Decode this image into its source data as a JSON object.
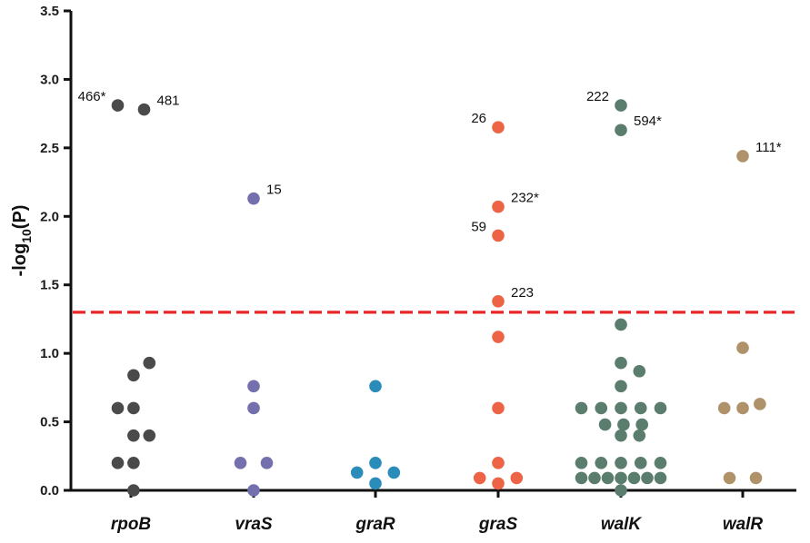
{
  "chart_data": {
    "type": "scatter",
    "ylabel": {
      "prefix": "-log",
      "subscript": "10",
      "suffix": "(P)"
    },
    "xlabel": "",
    "ylim": [
      0,
      3.5
    ],
    "yticks": [
      "0.0",
      "0.5",
      "1.0",
      "1.5",
      "2.0",
      "2.5",
      "3.0",
      "3.5"
    ],
    "threshold": {
      "value": 1.3,
      "color": "#e8262a",
      "style": "dashed"
    },
    "categories": [
      "rpoB",
      "vraS",
      "graR",
      "graS",
      "walK",
      "walR"
    ],
    "series": [
      {
        "name": "rpoB",
        "color": "#4a4a4a",
        "points": [
          {
            "y": 2.81,
            "dx": -1
          },
          {
            "y": 2.78,
            "dx": 1
          },
          {
            "y": 0.93,
            "dx": 1.4
          },
          {
            "y": 0.84,
            "dx": 0.2
          },
          {
            "y": 0.6,
            "dx": -1
          },
          {
            "y": 0.6,
            "dx": 0.2
          },
          {
            "y": 0.4,
            "dx": 0.2
          },
          {
            "y": 0.4,
            "dx": 1.4
          },
          {
            "y": 0.2,
            "dx": -1
          },
          {
            "y": 0.2,
            "dx": 0.2
          },
          {
            "y": 0.0,
            "dx": 0.2
          }
        ],
        "labels": [
          {
            "point": 0,
            "text": "466*",
            "side": "left"
          },
          {
            "point": 1,
            "text": "481",
            "side": "right"
          }
        ]
      },
      {
        "name": "vraS",
        "color": "#7370ad",
        "points": [
          {
            "y": 2.13,
            "dx": 0
          },
          {
            "y": 0.76,
            "dx": 0
          },
          {
            "y": 0.6,
            "dx": 0
          },
          {
            "y": 0.2,
            "dx": -1
          },
          {
            "y": 0.2,
            "dx": 1
          },
          {
            "y": 0.0,
            "dx": 0
          }
        ],
        "labels": [
          {
            "point": 0,
            "text": "15",
            "side": "right"
          }
        ]
      },
      {
        "name": "graR",
        "color": "#2a8cb8",
        "points": [
          {
            "y": 0.76,
            "dx": 0
          },
          {
            "y": 0.2,
            "dx": 0
          },
          {
            "y": 0.13,
            "dx": -1.4
          },
          {
            "y": 0.13,
            "dx": 1.4
          },
          {
            "y": 0.05,
            "dx": 0
          }
        ],
        "labels": []
      },
      {
        "name": "graS",
        "color": "#ec6345",
        "points": [
          {
            "y": 2.65,
            "dx": 0
          },
          {
            "y": 2.07,
            "dx": 0
          },
          {
            "y": 1.86,
            "dx": 0
          },
          {
            "y": 1.38,
            "dx": 0
          },
          {
            "y": 1.12,
            "dx": 0
          },
          {
            "y": 0.6,
            "dx": 0
          },
          {
            "y": 0.2,
            "dx": 0
          },
          {
            "y": 0.09,
            "dx": -1.4
          },
          {
            "y": 0.09,
            "dx": 1.4
          },
          {
            "y": 0.05,
            "dx": 0
          }
        ],
        "labels": [
          {
            "point": 0,
            "text": "26",
            "side": "left"
          },
          {
            "point": 1,
            "text": "232*",
            "side": "right"
          },
          {
            "point": 2,
            "text": "59",
            "side": "left"
          },
          {
            "point": 3,
            "text": "223",
            "side": "right"
          }
        ]
      },
      {
        "name": "walK",
        "color": "#5a7d6e",
        "points": [
          {
            "y": 2.81,
            "dx": 0
          },
          {
            "y": 2.63,
            "dx": 0
          },
          {
            "y": 1.21,
            "dx": 0
          },
          {
            "y": 0.93,
            "dx": 0
          },
          {
            "y": 0.87,
            "dx": 1.4
          },
          {
            "y": 0.76,
            "dx": 0
          },
          {
            "y": 0.6,
            "dx": -3
          },
          {
            "y": 0.6,
            "dx": -1.5
          },
          {
            "y": 0.6,
            "dx": 0
          },
          {
            "y": 0.6,
            "dx": 1.5
          },
          {
            "y": 0.6,
            "dx": 3
          },
          {
            "y": 0.48,
            "dx": -1.2
          },
          {
            "y": 0.48,
            "dx": 0.2
          },
          {
            "y": 0.48,
            "dx": 1.6
          },
          {
            "y": 0.4,
            "dx": 0
          },
          {
            "y": 0.4,
            "dx": 1.4
          },
          {
            "y": 0.2,
            "dx": -3
          },
          {
            "y": 0.2,
            "dx": -1.5
          },
          {
            "y": 0.2,
            "dx": 0
          },
          {
            "y": 0.2,
            "dx": 1.5
          },
          {
            "y": 0.2,
            "dx": 3
          },
          {
            "y": 0.09,
            "dx": -3
          },
          {
            "y": 0.09,
            "dx": -2
          },
          {
            "y": 0.09,
            "dx": -1
          },
          {
            "y": 0.09,
            "dx": 0
          },
          {
            "y": 0.09,
            "dx": 1
          },
          {
            "y": 0.09,
            "dx": 2
          },
          {
            "y": 0.09,
            "dx": 3
          },
          {
            "y": 0.0,
            "dx": 0
          }
        ],
        "labels": [
          {
            "point": 0,
            "text": "222",
            "side": "left"
          },
          {
            "point": 1,
            "text": "594*",
            "side": "right"
          }
        ]
      },
      {
        "name": "walR",
        "color": "#b0926a",
        "points": [
          {
            "y": 2.44,
            "dx": 0
          },
          {
            "y": 1.04,
            "dx": 0
          },
          {
            "y": 0.63,
            "dx": 1.3
          },
          {
            "y": 0.6,
            "dx": -1.4
          },
          {
            "y": 0.6,
            "dx": 0
          },
          {
            "y": 0.09,
            "dx": -1
          },
          {
            "y": 0.09,
            "dx": 1
          }
        ],
        "labels": [
          {
            "point": 0,
            "text": "111*",
            "side": "right"
          }
        ]
      }
    ]
  }
}
